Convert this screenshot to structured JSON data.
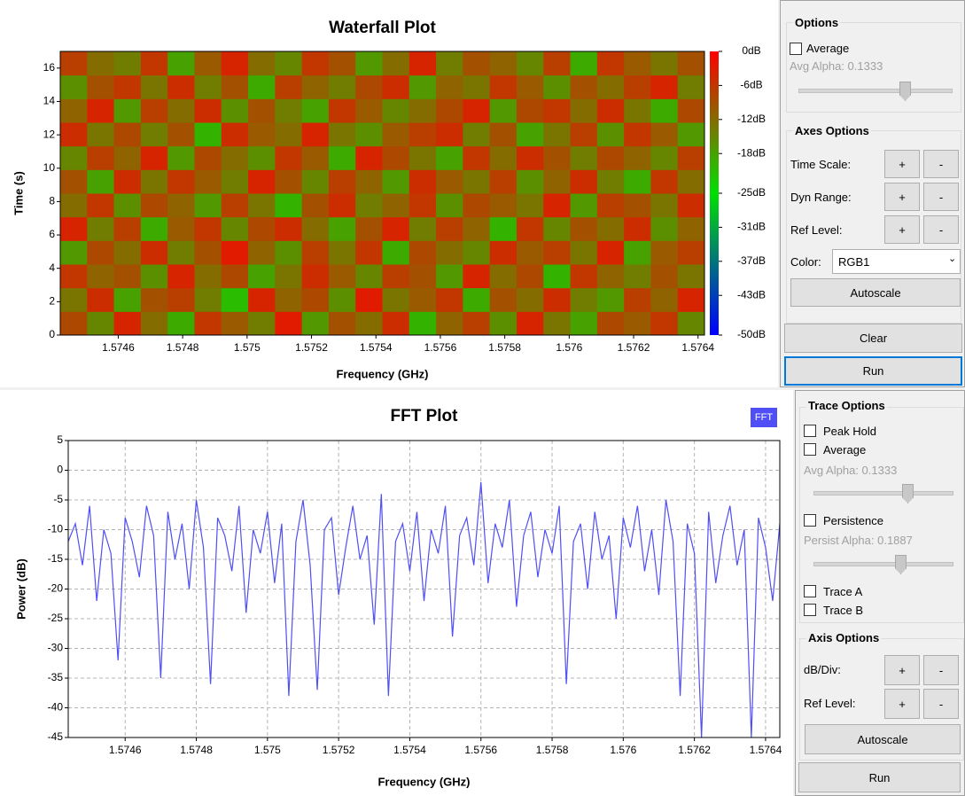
{
  "chart_data": [
    {
      "type": "heatmap",
      "title": "Waterfall Plot",
      "x_label": "Frequency (GHz)",
      "y_label": "Time (s)",
      "xlim": [
        1.57442,
        1.57642
      ],
      "ylim": [
        0,
        17
      ],
      "xticks": [
        1.5746,
        1.5748,
        1.575,
        1.5752,
        1.5754,
        1.5756,
        1.5758,
        1.576,
        1.5762,
        1.5764
      ],
      "yticks": [
        0,
        2,
        4,
        6,
        8,
        10,
        12,
        14,
        16
      ],
      "clim": [
        -50,
        0
      ],
      "colors": [
        "#0000ff",
        "#00e000",
        "#ff0000"
      ],
      "cticks": [
        {
          "value": 0,
          "label": "0dB"
        },
        {
          "value": -6,
          "label": "-6dB"
        },
        {
          "value": -12,
          "label": "-12dB"
        },
        {
          "value": -18,
          "label": "-18dB"
        },
        {
          "value": -25,
          "label": "-25dB"
        },
        {
          "value": -31,
          "label": "-31dB"
        },
        {
          "value": -37,
          "label": "-37dB"
        },
        {
          "value": -43,
          "label": "-43dB"
        },
        {
          "value": -50,
          "label": "-50dB"
        }
      ],
      "values": [
        [
          -8,
          -15,
          -4,
          -12,
          -19,
          -6,
          -10,
          -14,
          -3,
          -17,
          -9,
          -12,
          -5,
          -20,
          -11,
          -7,
          -16,
          -4,
          -13,
          -18,
          -8,
          -10,
          -6,
          -15
        ],
        [
          -13,
          -5,
          -18,
          -9,
          -7,
          -14,
          -21,
          -4,
          -11,
          -8,
          -16,
          -3,
          -13,
          -10,
          -6,
          -19,
          -9,
          -12,
          -5,
          -14,
          -17,
          -7,
          -11,
          -4
        ],
        [
          -6,
          -11,
          -9,
          -16,
          -4,
          -12,
          -8,
          -18,
          -13,
          -5,
          -10,
          -15,
          -7,
          -9,
          -17,
          -4,
          -12,
          -8,
          -20,
          -6,
          -11,
          -14,
          -9,
          -13
        ],
        [
          -17,
          -8,
          -12,
          -5,
          -14,
          -9,
          -3,
          -11,
          -16,
          -7,
          -13,
          -6,
          -19,
          -8,
          -12,
          -15,
          -5,
          -10,
          -7,
          -13,
          -4,
          -18,
          -10,
          -7
        ],
        [
          -4,
          -14,
          -7,
          -19,
          -10,
          -6,
          -15,
          -8,
          -5,
          -12,
          -18,
          -9,
          -4,
          -14,
          -7,
          -11,
          -20,
          -6,
          -15,
          -9,
          -12,
          -5,
          -16,
          -11
        ],
        [
          -12,
          -6,
          -16,
          -8,
          -11,
          -17,
          -7,
          -13,
          -20,
          -9,
          -5,
          -14,
          -11,
          -6,
          -16,
          -8,
          -10,
          -13,
          -4,
          -17,
          -7,
          -9,
          -13,
          -5
        ],
        [
          -9,
          -18,
          -5,
          -13,
          -6,
          -10,
          -14,
          -4,
          -9,
          -15,
          -7,
          -11,
          -17,
          -5,
          -10,
          -13,
          -7,
          -16,
          -11,
          -5,
          -14,
          -19,
          -6,
          -12
        ],
        [
          -15,
          -7,
          -11,
          -4,
          -17,
          -8,
          -12,
          -16,
          -6,
          -10,
          -19,
          -4,
          -8,
          -13,
          -18,
          -6,
          -12,
          -5,
          -9,
          -14,
          -8,
          -11,
          -15,
          -7
        ],
        [
          -5,
          -13,
          -8,
          -14,
          -9,
          -20,
          -5,
          -10,
          -12,
          -4,
          -13,
          -16,
          -10,
          -7,
          -5,
          -14,
          -9,
          -18,
          -13,
          -7,
          -16,
          -6,
          -10,
          -17
        ],
        [
          -11,
          -4,
          -17,
          -7,
          -12,
          -5,
          -16,
          -9,
          -14,
          -18,
          -6,
          -10,
          -15,
          -12,
          -8,
          -4,
          -17,
          -8,
          -6,
          -12,
          -5,
          -13,
          -19,
          -8
        ],
        [
          -16,
          -9,
          -6,
          -13,
          -5,
          -14,
          -9,
          -19,
          -7,
          -11,
          -14,
          -8,
          -5,
          -17,
          -11,
          -13,
          -6,
          -10,
          -16,
          -9,
          -12,
          -7,
          -4,
          -14
        ],
        [
          -7,
          -12,
          -14,
          -6,
          -18,
          -10,
          -4,
          -12,
          -15,
          -6,
          -9,
          -17,
          -12,
          -4,
          -14,
          -9,
          -11,
          -15,
          -7,
          -19,
          -6,
          -10,
          -13,
          -9
        ]
      ]
    },
    {
      "type": "line",
      "title": "FFT Plot",
      "x_label": "Frequency (GHz)",
      "y_label": "Power (dB)",
      "xlim": [
        1.57444,
        1.57644
      ],
      "ylim": [
        -45,
        5
      ],
      "grid": true,
      "xticks": [
        1.5746,
        1.5748,
        1.575,
        1.5752,
        1.5754,
        1.5756,
        1.5758,
        1.576,
        1.5762,
        1.5764
      ],
      "yticks": [
        5,
        0,
        -5,
        -10,
        -15,
        -20,
        -25,
        -30,
        -35,
        -40,
        -45
      ],
      "x": [
        1.57444,
        1.57446,
        1.57448,
        1.5745,
        1.57452,
        1.57454,
        1.57456,
        1.57458,
        1.5746,
        1.57462,
        1.57464,
        1.57466,
        1.57468,
        1.5747,
        1.57472,
        1.57474,
        1.57476,
        1.57478,
        1.5748,
        1.57482,
        1.57484,
        1.57486,
        1.57488,
        1.5749,
        1.57492,
        1.57494,
        1.57496,
        1.57498,
        1.575,
        1.57502,
        1.57504,
        1.57506,
        1.57508,
        1.5751,
        1.57512,
        1.57514,
        1.57516,
        1.57518,
        1.5752,
        1.57522,
        1.57524,
        1.57526,
        1.57528,
        1.5753,
        1.57532,
        1.57534,
        1.57536,
        1.57538,
        1.5754,
        1.57542,
        1.57544,
        1.57546,
        1.57548,
        1.5755,
        1.57552,
        1.57554,
        1.57556,
        1.57558,
        1.5756,
        1.57562,
        1.57564,
        1.57566,
        1.57568,
        1.5757,
        1.57572,
        1.57574,
        1.57576,
        1.57578,
        1.5758,
        1.57582,
        1.57584,
        1.57586,
        1.57588,
        1.5759,
        1.57592,
        1.57594,
        1.57596,
        1.57598,
        1.576,
        1.57602,
        1.57604,
        1.57606,
        1.57608,
        1.5761,
        1.57612,
        1.57614,
        1.57616,
        1.57618,
        1.5762,
        1.57622,
        1.57624,
        1.57626,
        1.57628,
        1.5763,
        1.57632,
        1.57634,
        1.57636,
        1.57638,
        1.5764,
        1.57642,
        1.57644
      ],
      "series": [
        {
          "name": "FFT",
          "color": "#4f4ff5",
          "values": [
            -12,
            -9,
            -16,
            -6,
            -22,
            -10,
            -14,
            -32,
            -8,
            -12,
            -18,
            -6,
            -11,
            -35,
            -7,
            -15,
            -9,
            -20,
            -5,
            -13,
            -36,
            -8,
            -11,
            -17,
            -6,
            -24,
            -10,
            -14,
            -7,
            -19,
            -9,
            -38,
            -12,
            -5,
            -16,
            -37,
            -10,
            -8,
            -21,
            -13,
            -6,
            -15,
            -11,
            -26,
            -4,
            -38,
            -12,
            -9,
            -17,
            -7,
            -22,
            -10,
            -14,
            -6,
            -28,
            -11,
            -8,
            -16,
            -2,
            -19,
            -9,
            -13,
            -5,
            -23,
            -11,
            -7,
            -18,
            -10,
            -14,
            -6,
            -36,
            -12,
            -9,
            -20,
            -7,
            -15,
            -11,
            -25,
            -8,
            -13,
            -6,
            -17,
            -10,
            -21,
            -5,
            -12,
            -38,
            -9,
            -14,
            -45,
            -7,
            -19,
            -11,
            -6,
            -16,
            -10,
            -45,
            -8,
            -13,
            -22,
            -9
          ]
        }
      ]
    }
  ],
  "options_panel": {
    "title": "Options",
    "average": "Average",
    "avg_alpha": "Avg Alpha: 0.1333",
    "axes_title": "Axes Options",
    "rows": [
      "Time Scale:",
      "Dyn Range:",
      "Ref Level:"
    ],
    "plus": "+",
    "minus": "-",
    "color_label": "Color:",
    "color_value": "RGB1",
    "autoscale": "Autoscale",
    "clear": "Clear",
    "run": "Run"
  },
  "trace_panel": {
    "title": "Trace Options",
    "peak_hold": "Peak Hold",
    "average": "Average",
    "avg_alpha": "Avg Alpha: 0.1333",
    "persistence": "Persistence",
    "persist_alpha": "Persist Alpha: 0.1887",
    "trace_a": "Trace A",
    "trace_b": "Trace B",
    "axis_title": "Axis Options",
    "rows": [
      "dB/Div:",
      "Ref Level:"
    ],
    "plus": "+",
    "minus": "-",
    "autoscale": "Autoscale",
    "run": "Run"
  }
}
